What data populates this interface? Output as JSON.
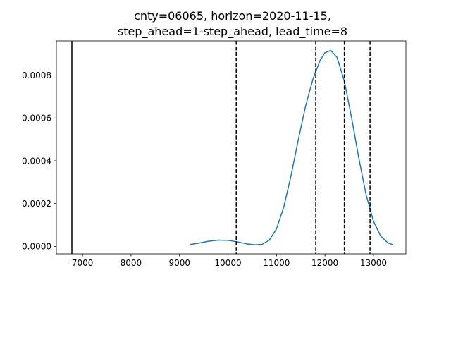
{
  "chart_data": {
    "type": "line",
    "title": [
      "cnty=06065, horizon=2020-11-15,",
      "step_ahead=1-step_ahead, lead_time=8"
    ],
    "xlabel": "",
    "ylabel": "",
    "xlim": [
      6460,
      13670
    ],
    "ylim": [
      -3.5e-05,
      0.00096
    ],
    "grid": false,
    "legend": "none",
    "x_ticks": [
      7000,
      8000,
      9000,
      10000,
      11000,
      12000,
      13000
    ],
    "x_tick_labels": [
      "7000",
      "8000",
      "9000",
      "10000",
      "11000",
      "12000",
      "13000"
    ],
    "y_ticks": [
      0.0,
      0.0002,
      0.0004,
      0.0006,
      0.0008
    ],
    "y_tick_labels": [
      "0.0000",
      "0.0002",
      "0.0004",
      "0.0006",
      "0.0008"
    ],
    "series": [
      {
        "color": "#1f77b4",
        "points": [
          [
            9210,
            8.1e-06
          ],
          [
            9400,
            1.54e-05
          ],
          [
            9600,
            2.39e-05
          ],
          [
            9800,
            2.92e-05
          ],
          [
            10000,
            2.82e-05
          ],
          [
            10200,
            2.08e-05
          ],
          [
            10400,
            1.13e-05
          ],
          [
            10550,
            7.4e-06
          ],
          [
            10700,
            9e-06
          ],
          [
            10850,
            2.87e-05
          ],
          [
            11000,
            8.13e-05
          ],
          [
            11150,
            0.000183
          ],
          [
            11300,
            0.00033
          ],
          [
            11450,
            0.000498
          ],
          [
            11600,
            0.000655
          ],
          [
            11750,
            0.00078
          ],
          [
            11900,
            0.000869
          ],
          [
            12000,
            0.000905
          ],
          [
            12120,
            0.000915
          ],
          [
            12250,
            0.000883
          ],
          [
            12400,
            0.000772
          ],
          [
            12550,
            0.0006
          ],
          [
            12700,
            0.00041
          ],
          [
            12850,
            0.00024
          ],
          [
            13000,
            0.000118
          ],
          [
            13150,
            4.8e-05
          ],
          [
            13300,
            1.6e-05
          ],
          [
            13400,
            8e-06
          ]
        ]
      }
    ],
    "reference_lines": [
      {
        "x": 6780,
        "style": "solid",
        "color": "#000000"
      },
      {
        "x": 10170,
        "style": "dashed",
        "color": "#000000"
      },
      {
        "x": 11810,
        "style": "dashed",
        "color": "#000000"
      },
      {
        "x": 12400,
        "style": "dashed",
        "color": "#000000"
      },
      {
        "x": 12930,
        "style": "dashed",
        "color": "#000000"
      }
    ]
  }
}
